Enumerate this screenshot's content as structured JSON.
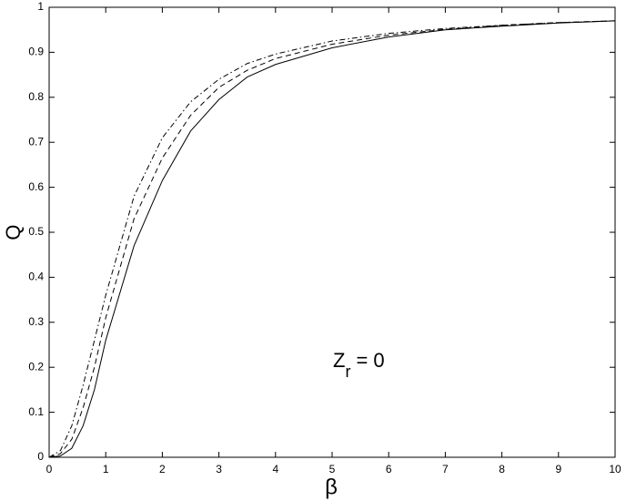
{
  "chart_data": {
    "type": "line",
    "xlabel": "β",
    "ylabel": "Q",
    "annotation": {
      "base": "Z",
      "sub": "r",
      "tail": "= 0"
    },
    "x": [
      0,
      0.2,
      0.4,
      0.6,
      0.8,
      1,
      1.5,
      2,
      2.5,
      3,
      3.5,
      4,
      5,
      6,
      7,
      8,
      9,
      10
    ],
    "series": [
      {
        "color": "#000000",
        "style": "solid",
        "values": [
          0,
          0.003,
          0.02,
          0.07,
          0.15,
          0.26,
          0.47,
          0.615,
          0.725,
          0.795,
          0.845,
          0.873,
          0.91,
          0.934,
          0.95,
          0.958,
          0.965,
          0.97
        ]
      },
      {
        "color": "#000000",
        "style": "dashed",
        "values": [
          0,
          0.008,
          0.04,
          0.11,
          0.2,
          0.31,
          0.53,
          0.665,
          0.76,
          0.822,
          0.86,
          0.886,
          0.918,
          0.938,
          0.951,
          0.96,
          0.966,
          0.97
        ]
      },
      {
        "color": "#000000",
        "style": "dashdot",
        "values": [
          0,
          0.015,
          0.07,
          0.16,
          0.26,
          0.36,
          0.58,
          0.71,
          0.79,
          0.84,
          0.875,
          0.896,
          0.925,
          0.942,
          0.953,
          0.96,
          0.966,
          0.97
        ]
      }
    ],
    "xlim": [
      0,
      10
    ],
    "xticks": [
      0,
      1,
      2,
      3,
      4,
      5,
      6,
      7,
      8,
      9,
      10
    ],
    "ylim": [
      0,
      1
    ],
    "yticks": [
      0,
      0.1,
      0.2,
      0.3,
      0.4,
      0.5,
      0.6,
      0.7,
      0.8,
      0.9,
      1
    ],
    "grid": false
  }
}
